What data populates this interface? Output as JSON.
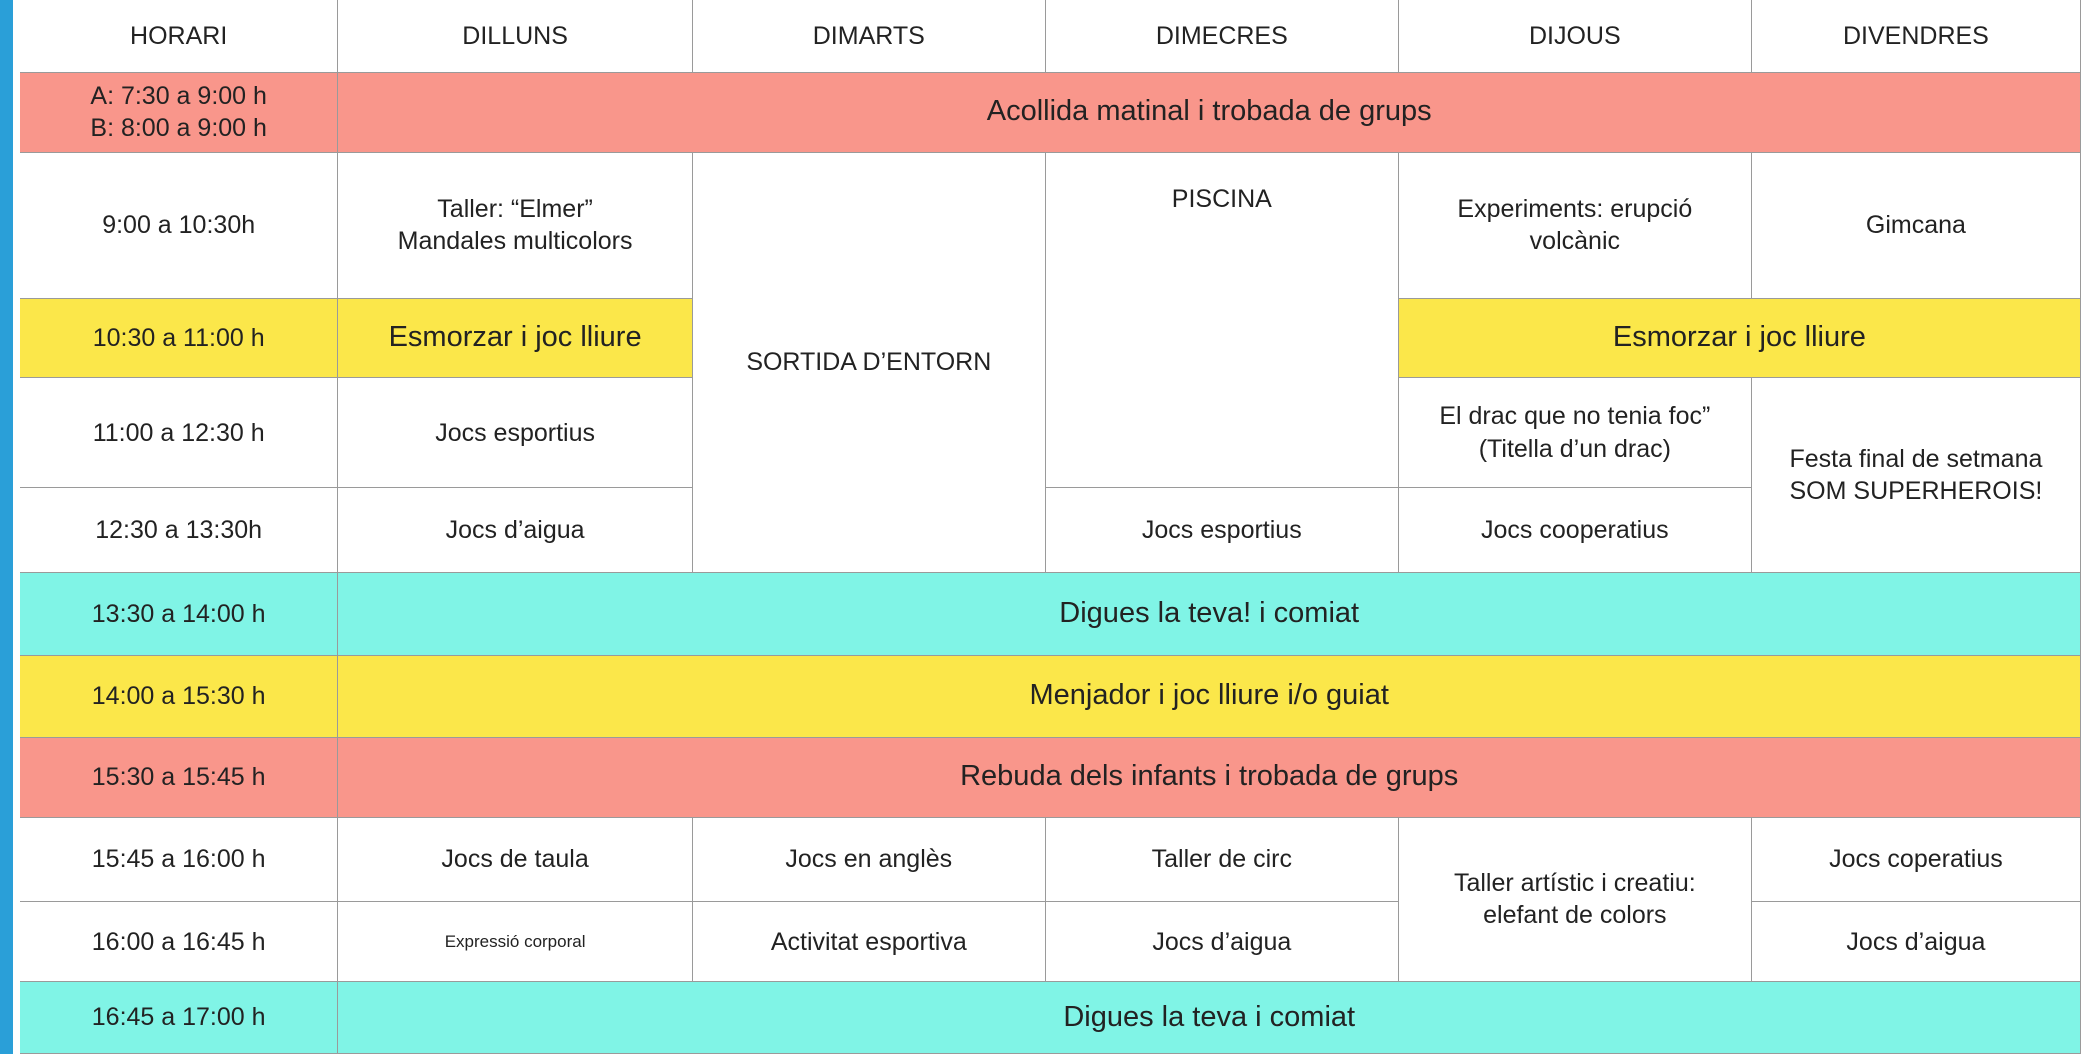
{
  "header": [
    "HORARI",
    "DILLUNS",
    "DIMARTS",
    "DIMECRES",
    "DIJOUS",
    "DIVENDRES"
  ],
  "rows": [
    {
      "time": [
        "A: 7:30 a 9:00 h",
        "B: 8:00 a 9:00 h"
      ],
      "cells": [
        [
          "Acollida matinal i trobada de grups"
        ]
      ]
    },
    {
      "time": [
        "9:00 a 10:30h"
      ],
      "cells": [
        [
          "Taller: “Elmer”",
          "Mandales multicolors"
        ],
        [
          "SORTIDA D’ENTORN"
        ],
        [
          "PISCINA"
        ],
        [
          "Experiments: erupció",
          "volcànic"
        ],
        [
          "Gimcana"
        ]
      ]
    },
    {
      "time": [
        "10:30 a 11:00 h"
      ],
      "cells": [
        [
          "Esmorzar i joc lliure"
        ],
        [
          "Esmorzar i joc lliure"
        ]
      ]
    },
    {
      "time": [
        "11:00 a 12:30 h"
      ],
      "cells": [
        [
          "Jocs esportius"
        ],
        [
          "El drac que no tenia foc”",
          "(Titella d’un drac)"
        ],
        [
          "Festa final de setmana",
          "SOM SUPERHEROIS!"
        ]
      ]
    },
    {
      "time": [
        "12:30 a 13:30h"
      ],
      "cells": [
        [
          "Jocs d’aigua"
        ],
        [
          "Jocs esportius"
        ],
        [
          "Jocs cooperatius"
        ]
      ]
    },
    {
      "time": [
        "13:30 a 14:00 h"
      ],
      "cells": [
        [
          "Digues la teva! i comiat"
        ]
      ]
    },
    {
      "time": [
        "14:00 a 15:30 h"
      ],
      "cells": [
        [
          "Menjador i joc lliure i/o guiat"
        ]
      ]
    },
    {
      "time": [
        "15:30 a 15:45 h"
      ],
      "cells": [
        [
          "Rebuda dels infants i trobada de grups"
        ]
      ]
    },
    {
      "time": [
        "15:45 a 16:00 h"
      ],
      "cells": [
        [
          "Jocs de taula"
        ],
        [
          "Jocs en anglès"
        ],
        [
          "Taller de circ"
        ],
        [
          "Taller artístic i creatiu:",
          "elefant de colors"
        ],
        [
          "Jocs coperatius"
        ]
      ]
    },
    {
      "time": [
        "16:00 a 16:45 h"
      ],
      "cells": [
        [
          "Expressió corporal"
        ],
        [
          "Activitat esportiva"
        ],
        [
          "Jocs d’aigua"
        ],
        [
          "Jocs d’aigua"
        ]
      ]
    },
    {
      "time": [
        "16:45 a 17:00 h"
      ],
      "cells": [
        [
          "Digues la teva i comiat"
        ]
      ]
    }
  ]
}
